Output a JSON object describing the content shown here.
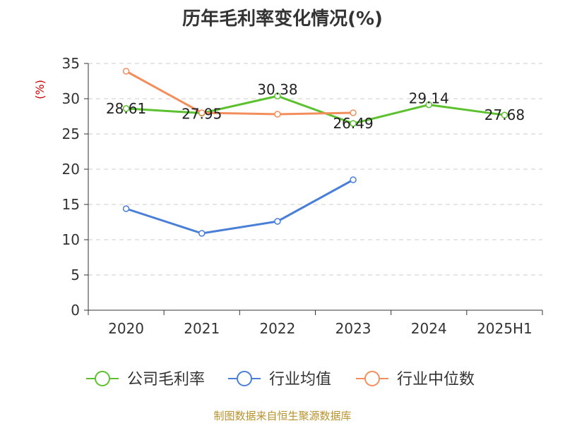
{
  "chart_data": {
    "type": "line",
    "title": "历年毛利率变化情况(%)",
    "ylabel": "(%)",
    "xlabel": "",
    "categories": [
      "2020",
      "2021",
      "2022",
      "2023",
      "2024",
      "2025H1"
    ],
    "ylim": [
      0,
      35
    ],
    "yticks": [
      0,
      5,
      10,
      15,
      20,
      25,
      30,
      35
    ],
    "grid": true,
    "legend_position": "bottom",
    "series": [
      {
        "name": "公司毛利率",
        "color": "#5cc12e",
        "values": [
          28.61,
          27.95,
          30.38,
          26.49,
          29.14,
          27.68
        ],
        "labels": [
          "28.61",
          "27.95",
          "30.38",
          "26.49",
          "29.14",
          "27.68"
        ]
      },
      {
        "name": "行业均值",
        "color": "#4a7fd8",
        "values": [
          14.4,
          10.9,
          12.6,
          18.5,
          null,
          null
        ]
      },
      {
        "name": "行业中位数",
        "color": "#f28e5c",
        "values": [
          33.9,
          28.0,
          27.8,
          28.0,
          null,
          null
        ]
      }
    ]
  },
  "source": "制图数据来自恒生聚源数据库"
}
